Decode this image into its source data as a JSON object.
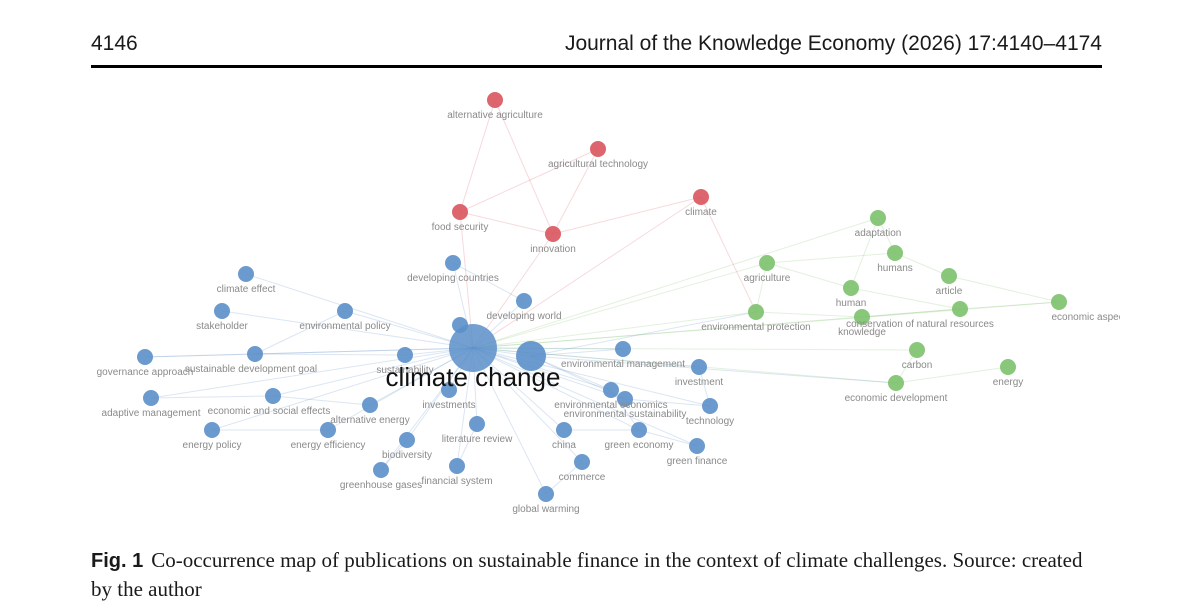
{
  "header": {
    "page_number": "4146",
    "running_head": "Journal of the Knowledge Economy (2026) 17:4140–4174"
  },
  "figure": {
    "label": "Fig. 1",
    "caption": "Co-occurrence map of publications on sustainable finance in the context of climate challenges. Source: created by the author",
    "cluster_colors": {
      "red": "#d9545d",
      "green": "#7cc16b",
      "blue": "#5b8fc9"
    },
    "nodes": [
      {
        "id": "n0",
        "label": "alternative agriculture",
        "cluster": "red",
        "weight": 1
      },
      {
        "id": "n1",
        "label": "agricultural technology",
        "cluster": "red",
        "weight": 1
      },
      {
        "id": "n2",
        "label": "climate",
        "cluster": "red",
        "weight": 1
      },
      {
        "id": "n3",
        "label": "food security",
        "cluster": "red",
        "weight": 1
      },
      {
        "id": "n4",
        "label": "innovation",
        "cluster": "red",
        "weight": 1
      },
      {
        "id": "n5",
        "label": "adaptation",
        "cluster": "green",
        "weight": 1
      },
      {
        "id": "n6",
        "label": "humans",
        "cluster": "green",
        "weight": 1
      },
      {
        "id": "n7",
        "label": "agriculture",
        "cluster": "green",
        "weight": 1
      },
      {
        "id": "n8",
        "label": "article",
        "cluster": "green",
        "weight": 1
      },
      {
        "id": "n9",
        "label": "human",
        "cluster": "green",
        "weight": 1
      },
      {
        "id": "n10",
        "label": "economic aspect",
        "cluster": "green",
        "weight": 1
      },
      {
        "id": "n11",
        "label": "environmental protection",
        "cluster": "green",
        "weight": 1
      },
      {
        "id": "n12",
        "label": "knowledge",
        "cluster": "green",
        "weight": 1
      },
      {
        "id": "n13",
        "label": "conservation of natural resources",
        "cluster": "green",
        "weight": 1
      },
      {
        "id": "n14",
        "label": "carbon",
        "cluster": "green",
        "weight": 1
      },
      {
        "id": "n15",
        "label": "energy",
        "cluster": "green",
        "weight": 1
      },
      {
        "id": "n16",
        "label": "economic development",
        "cluster": "green",
        "weight": 1
      },
      {
        "id": "n17",
        "label": "climate effect",
        "cluster": "blue",
        "weight": 1
      },
      {
        "id": "n18",
        "label": "developing countries",
        "cluster": "blue",
        "weight": 1
      },
      {
        "id": "n19",
        "label": "developing world",
        "cluster": "blue",
        "weight": 1
      },
      {
        "id": "n20",
        "label": "stakeholder",
        "cluster": "blue",
        "weight": 1
      },
      {
        "id": "n21",
        "label": "environmental policy",
        "cluster": "blue",
        "weight": 1
      },
      {
        "id": "n22",
        "label": "governance approach",
        "cluster": "blue",
        "weight": 1
      },
      {
        "id": "n23",
        "label": "sustainable development goal",
        "cluster": "blue",
        "weight": 1
      },
      {
        "id": "n24",
        "label": "sustainability",
        "cluster": "blue",
        "weight": 1
      },
      {
        "id": "n25",
        "label": "climate change",
        "cluster": "blue",
        "weight": 4,
        "main": true
      },
      {
        "id": "n26",
        "label": "",
        "cluster": "blue",
        "weight": 2
      },
      {
        "id": "n27",
        "label": "environmental management",
        "cluster": "blue",
        "weight": 1
      },
      {
        "id": "n28",
        "label": "investment",
        "cluster": "blue",
        "weight": 1
      },
      {
        "id": "n29",
        "label": "adaptive management",
        "cluster": "blue",
        "weight": 1
      },
      {
        "id": "n30",
        "label": "economic and social effects",
        "cluster": "blue",
        "weight": 1
      },
      {
        "id": "n31",
        "label": "investments",
        "cluster": "blue",
        "weight": 1
      },
      {
        "id": "n32",
        "label": "environmental economics",
        "cluster": "blue",
        "weight": 1
      },
      {
        "id": "n33",
        "label": "alternative energy",
        "cluster": "blue",
        "weight": 1
      },
      {
        "id": "n34",
        "label": "environmental sustainability",
        "cluster": "blue",
        "weight": 1
      },
      {
        "id": "n35",
        "label": "technology",
        "cluster": "blue",
        "weight": 1
      },
      {
        "id": "n36",
        "label": "energy policy",
        "cluster": "blue",
        "weight": 1
      },
      {
        "id": "n37",
        "label": "energy efficiency",
        "cluster": "blue",
        "weight": 1
      },
      {
        "id": "n38",
        "label": "literature review",
        "cluster": "blue",
        "weight": 1
      },
      {
        "id": "n39",
        "label": "biodiversity",
        "cluster": "blue",
        "weight": 1
      },
      {
        "id": "n40",
        "label": "china",
        "cluster": "blue",
        "weight": 1
      },
      {
        "id": "n41",
        "label": "green economy",
        "cluster": "blue",
        "weight": 1
      },
      {
        "id": "n42",
        "label": "green finance",
        "cluster": "blue",
        "weight": 1
      },
      {
        "id": "n43",
        "label": "greenhouse gases",
        "cluster": "blue",
        "weight": 1
      },
      {
        "id": "n44",
        "label": "financial system",
        "cluster": "blue",
        "weight": 1
      },
      {
        "id": "n45",
        "label": "commerce",
        "cluster": "blue",
        "weight": 1
      },
      {
        "id": "n46",
        "label": "global warming",
        "cluster": "blue",
        "weight": 1
      },
      {
        "id": "n47",
        "label": "",
        "cluster": "blue",
        "weight": 1
      }
    ],
    "edges": [
      [
        "n0",
        "n4"
      ],
      [
        "n0",
        "n3"
      ],
      [
        "n1",
        "n3"
      ],
      [
        "n1",
        "n4"
      ],
      [
        "n2",
        "n4"
      ],
      [
        "n3",
        "n4"
      ],
      [
        "n3",
        "n25"
      ],
      [
        "n4",
        "n25"
      ],
      [
        "n2",
        "n25"
      ],
      [
        "n2",
        "n11"
      ],
      [
        "n5",
        "n6"
      ],
      [
        "n5",
        "n9"
      ],
      [
        "n6",
        "n8"
      ],
      [
        "n7",
        "n9"
      ],
      [
        "n7",
        "n11"
      ],
      [
        "n8",
        "n10"
      ],
      [
        "n9",
        "n13"
      ],
      [
        "n11",
        "n12"
      ],
      [
        "n12",
        "n13"
      ],
      [
        "n13",
        "n10"
      ],
      [
        "n14",
        "n16"
      ],
      [
        "n15",
        "n16"
      ],
      [
        "n16",
        "n25"
      ],
      [
        "n11",
        "n25"
      ],
      [
        "n7",
        "n25"
      ],
      [
        "n13",
        "n25"
      ],
      [
        "n14",
        "n25"
      ],
      [
        "n10",
        "n25"
      ],
      [
        "n5",
        "n25"
      ],
      [
        "n6",
        "n7"
      ],
      [
        "n17",
        "n25"
      ],
      [
        "n18",
        "n25"
      ],
      [
        "n19",
        "n25"
      ],
      [
        "n20",
        "n25"
      ],
      [
        "n21",
        "n25"
      ],
      [
        "n22",
        "n25"
      ],
      [
        "n23",
        "n25"
      ],
      [
        "n24",
        "n25"
      ],
      [
        "n26",
        "n25"
      ],
      [
        "n27",
        "n25"
      ],
      [
        "n28",
        "n25"
      ],
      [
        "n29",
        "n25"
      ],
      [
        "n30",
        "n25"
      ],
      [
        "n31",
        "n25"
      ],
      [
        "n32",
        "n25"
      ],
      [
        "n33",
        "n25"
      ],
      [
        "n34",
        "n25"
      ],
      [
        "n35",
        "n25"
      ],
      [
        "n36",
        "n25"
      ],
      [
        "n37",
        "n25"
      ],
      [
        "n38",
        "n25"
      ],
      [
        "n39",
        "n25"
      ],
      [
        "n40",
        "n25"
      ],
      [
        "n41",
        "n25"
      ],
      [
        "n42",
        "n25"
      ],
      [
        "n43",
        "n25"
      ],
      [
        "n44",
        "n25"
      ],
      [
        "n45",
        "n25"
      ],
      [
        "n46",
        "n25"
      ],
      [
        "n47",
        "n25"
      ],
      [
        "n26",
        "n27"
      ],
      [
        "n26",
        "n32"
      ],
      [
        "n26",
        "n34"
      ],
      [
        "n26",
        "n11"
      ],
      [
        "n26",
        "n16"
      ],
      [
        "n22",
        "n23"
      ],
      [
        "n23",
        "n24"
      ],
      [
        "n29",
        "n30"
      ],
      [
        "n30",
        "n33"
      ],
      [
        "n36",
        "n37"
      ],
      [
        "n38",
        "n44"
      ],
      [
        "n40",
        "n41"
      ],
      [
        "n41",
        "n42"
      ],
      [
        "n43",
        "n39"
      ],
      [
        "n18",
        "n19"
      ],
      [
        "n21",
        "n23"
      ],
      [
        "n34",
        "n35"
      ],
      [
        "n28",
        "n35"
      ],
      [
        "n45",
        "n46"
      ],
      [
        "n32",
        "n41"
      ]
    ]
  }
}
